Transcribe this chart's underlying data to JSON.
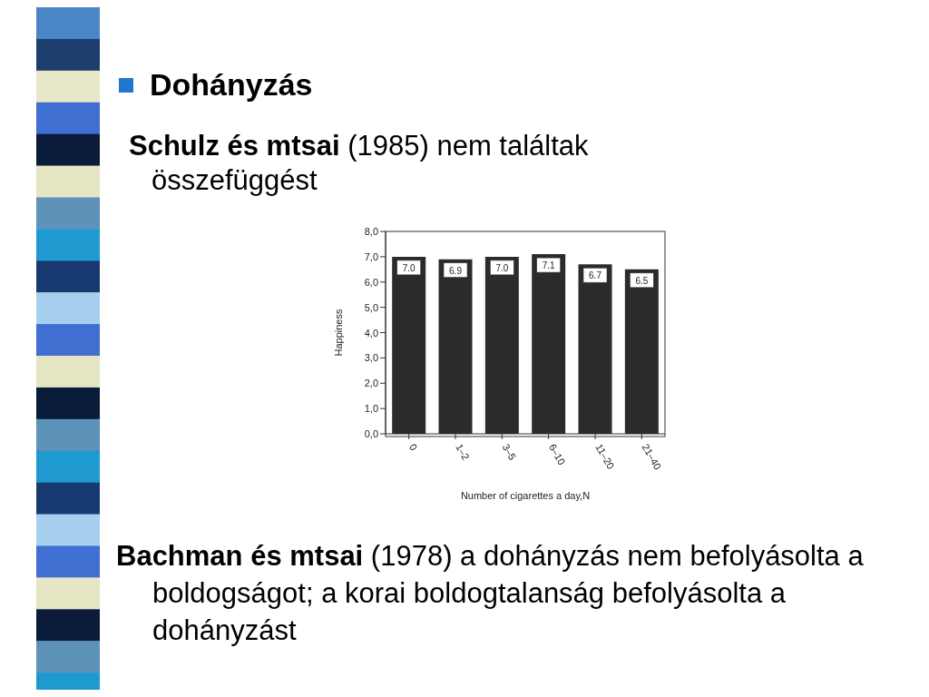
{
  "chart_data": {
    "type": "bar",
    "title": "Dohányzás",
    "subtitle": "Schulz és mtsai (1985) nem találtak összefüggést",
    "xlabel": "Number of cigarettes a day,N",
    "ylabel": "Happiness",
    "categories": [
      "0",
      "1–2",
      "3–5",
      "6–10",
      "11–20",
      "21–40"
    ],
    "values": [
      7.0,
      6.9,
      7.0,
      7.1,
      6.7,
      6.5
    ],
    "color": "#2b2b2b",
    "ylim": [
      0,
      8
    ],
    "yticks": [
      {
        "value": 0,
        "label": "0,0"
      },
      {
        "value": 1,
        "label": "1,0"
      },
      {
        "value": 2,
        "label": "2,0"
      },
      {
        "value": 3,
        "label": "3,0"
      },
      {
        "value": 4,
        "label": "4,0"
      },
      {
        "value": 5,
        "label": "5,0"
      },
      {
        "value": 6,
        "label": "6,0"
      },
      {
        "value": 7,
        "label": "7,0"
      },
      {
        "value": 8,
        "label": "8,0"
      }
    ],
    "value_labels": [
      "7.0",
      "6.9",
      "7.0",
      "7.1",
      "6.7",
      "6.5"
    ],
    "annotations": [
      "Bachman és mtsai (1978) a dohányzás nem befolyásolta a boldogságot; a korai boldogtalanság befolyásolta a dohányzást"
    ]
  }
}
